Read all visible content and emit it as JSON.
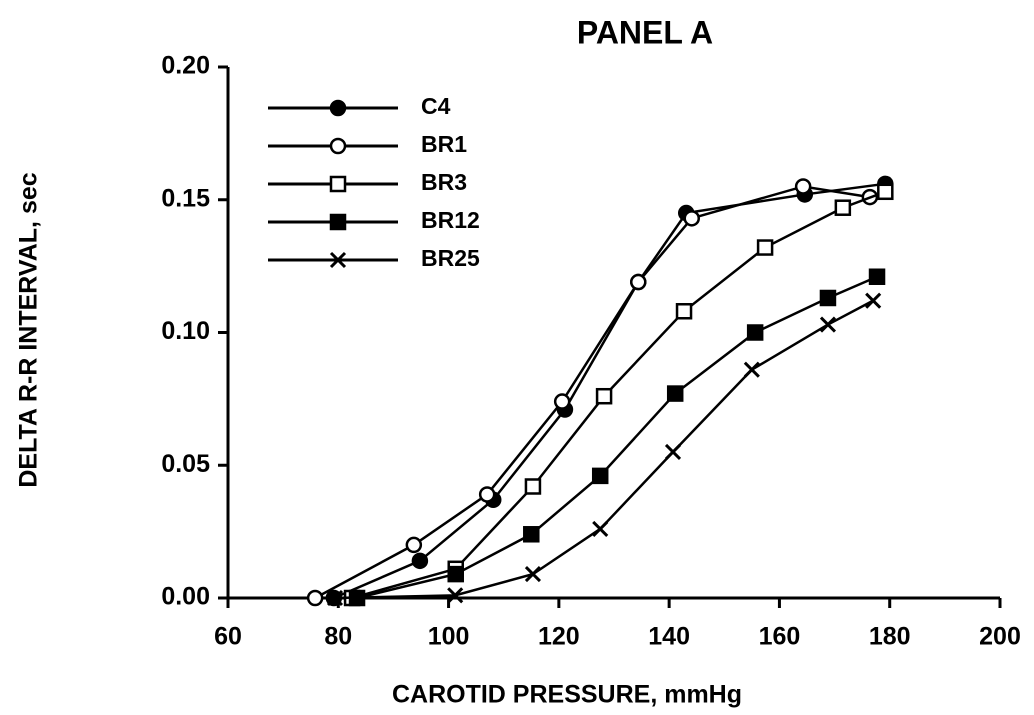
{
  "chart_data": {
    "type": "line",
    "title": "PANEL A",
    "x_label": "CAROTID PRESSURE, mmHg",
    "y_label": "DELTA R-R INTERVAL, sec",
    "xlim": [
      60,
      200
    ],
    "xticks": [
      60,
      80,
      100,
      120,
      140,
      160,
      180,
      200
    ],
    "ylim": [
      0,
      0.2
    ],
    "yticks": [
      {
        "value": 0,
        "label": "0.00"
      },
      {
        "value": 0.05,
        "label": "0.05"
      },
      {
        "value": 0.1,
        "label": "0.10"
      },
      {
        "value": 0.15,
        "label": "0.15"
      },
      {
        "value": 0.2,
        "label": "0.20"
      }
    ],
    "legend": "upper left",
    "series": [
      {
        "name": "C4",
        "color": "#000000",
        "marker": "circle-filled",
        "x": [
          79.2,
          94.8,
          108.1,
          121.1,
          134.4,
          143.1,
          164.6,
          179.2
        ],
        "values": [
          0,
          0.014,
          0.037,
          0.071,
          0.119,
          0.145,
          0.152,
          0.156
        ]
      },
      {
        "name": "BR1",
        "color": "#000000",
        "marker": "circle-open",
        "x": [
          75.8,
          93.7,
          107,
          120.6,
          134.4,
          144.1,
          164.3,
          176.4
        ],
        "values": [
          0,
          0.02,
          0.039,
          0.074,
          0.119,
          0.143,
          0.155,
          0.151
        ]
      },
      {
        "name": "BR3",
        "color": "#000000",
        "marker": "square-open",
        "x": [
          82.5,
          101.3,
          115.3,
          128.2,
          142.7,
          157.4,
          171.5,
          179.2
        ],
        "values": [
          0,
          0.011,
          0.042,
          0.076,
          0.108,
          0.132,
          0.147,
          0.153
        ]
      },
      {
        "name": "BR12",
        "color": "#000000",
        "marker": "square-filled",
        "x": [
          83.4,
          101.3,
          115,
          127.5,
          141.1,
          155.6,
          168.8,
          177.7
        ],
        "values": [
          0,
          0.009,
          0.024,
          0.046,
          0.077,
          0.1,
          0.113,
          0.121
        ]
      },
      {
        "name": "BR25",
        "color": "#000000",
        "marker": "cross",
        "x": [
          79.4,
          101.2,
          115.3,
          127.5,
          140.7,
          155,
          168.8,
          177
        ],
        "values": [
          0,
          0.001,
          0.009,
          0.026,
          0.055,
          0.086,
          0.103,
          0.112
        ]
      }
    ]
  }
}
